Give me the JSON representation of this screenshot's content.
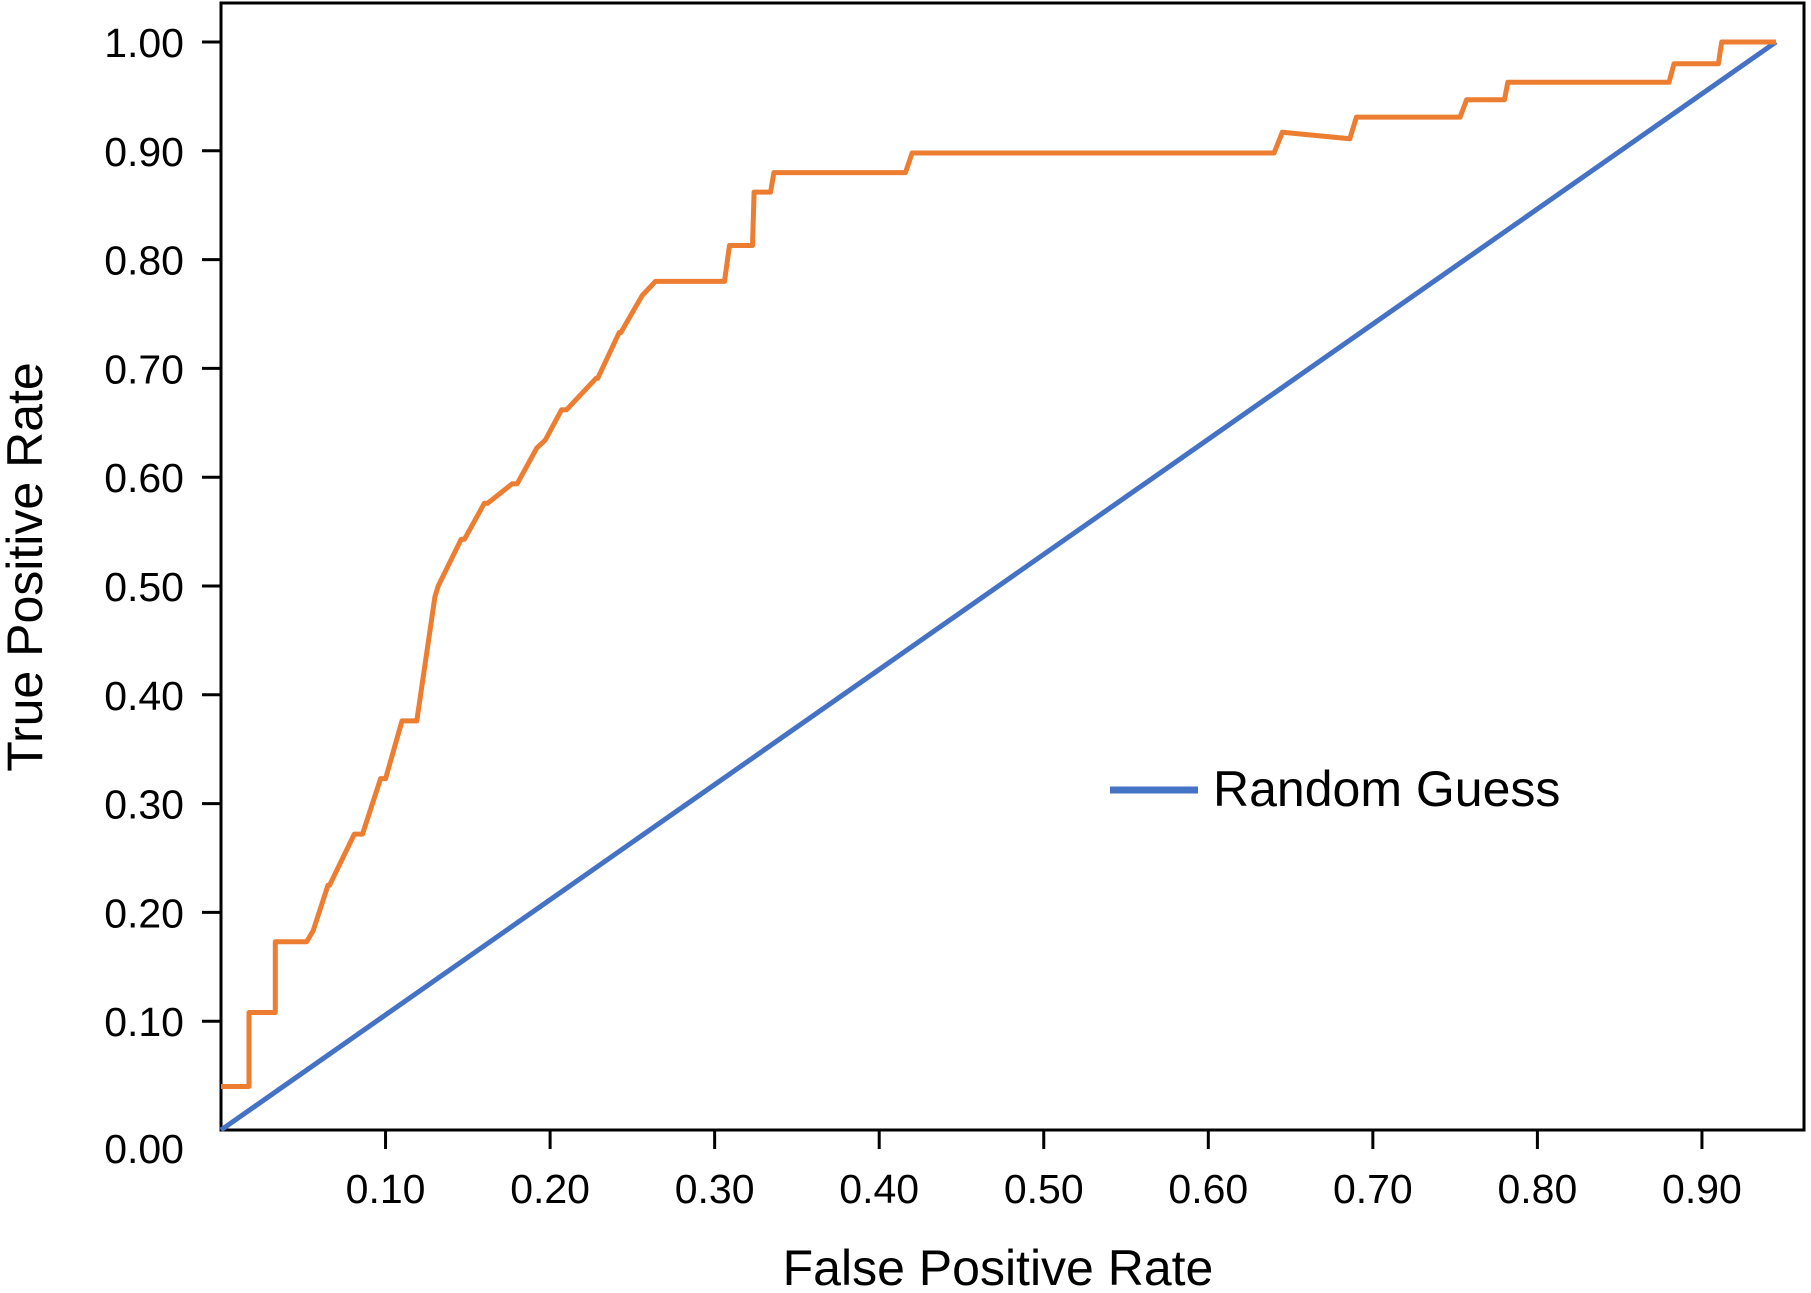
{
  "chart_data": {
    "type": "line",
    "title": "",
    "xlabel": "False Positive Rate",
    "ylabel": "True Positive Rate",
    "xlim": [
      0,
      0.945
    ],
    "ylim": [
      0,
      1.0
    ],
    "x_ticks": [
      0.1,
      0.2,
      0.3,
      0.4,
      0.5,
      0.6,
      0.7,
      0.8,
      0.9
    ],
    "x_tick_labels": [
      "0.10",
      "0.20",
      "0.30",
      "0.40",
      "0.50",
      "0.60",
      "0.70",
      "0.80",
      "0.90"
    ],
    "y_ticks": [
      0.1,
      0.2,
      0.3,
      0.4,
      0.5,
      0.6,
      0.7,
      0.8,
      0.9,
      1.0
    ],
    "y_tick_labels": [
      "0.10",
      "0.20",
      "0.30",
      "0.40",
      "0.50",
      "0.60",
      "0.70",
      "0.80",
      "0.90",
      "1.00"
    ],
    "origin_label": "0.00",
    "grid": false,
    "legend_position": "center-right",
    "series": [
      {
        "color": "#ED7D31",
        "x": [
          0.0,
          0.017,
          0.017,
          0.033,
          0.033,
          0.052,
          0.056,
          0.065,
          0.066,
          0.081,
          0.086,
          0.097,
          0.1,
          0.11,
          0.119,
          0.13,
          0.132,
          0.146,
          0.148,
          0.16,
          0.162,
          0.177,
          0.18,
          0.192,
          0.197,
          0.207,
          0.21,
          0.228,
          0.229,
          0.242,
          0.243,
          0.256,
          0.264,
          0.306,
          0.309,
          0.323,
          0.324,
          0.334,
          0.336,
          0.416,
          0.42,
          0.64,
          0.645,
          0.686,
          0.69,
          0.753,
          0.757,
          0.78,
          0.782,
          0.88,
          0.883,
          0.91,
          0.912,
          0.945
        ],
        "y": [
          0.04,
          0.04,
          0.108,
          0.108,
          0.173,
          0.173,
          0.183,
          0.225,
          0.225,
          0.272,
          0.272,
          0.323,
          0.323,
          0.376,
          0.376,
          0.49,
          0.5,
          0.543,
          0.543,
          0.576,
          0.576,
          0.594,
          0.594,
          0.627,
          0.634,
          0.662,
          0.662,
          0.691,
          0.691,
          0.733,
          0.733,
          0.767,
          0.78,
          0.78,
          0.813,
          0.813,
          0.862,
          0.862,
          0.88,
          0.88,
          0.898,
          0.898,
          0.917,
          0.911,
          0.931,
          0.931,
          0.947,
          0.947,
          0.963,
          0.963,
          0.98,
          0.98,
          1.0,
          1.0
        ]
      },
      {
        "name": "Random Guess",
        "color": "#4472C4",
        "x": [
          0,
          0.945
        ],
        "y": [
          0,
          1.0
        ]
      }
    ]
  }
}
